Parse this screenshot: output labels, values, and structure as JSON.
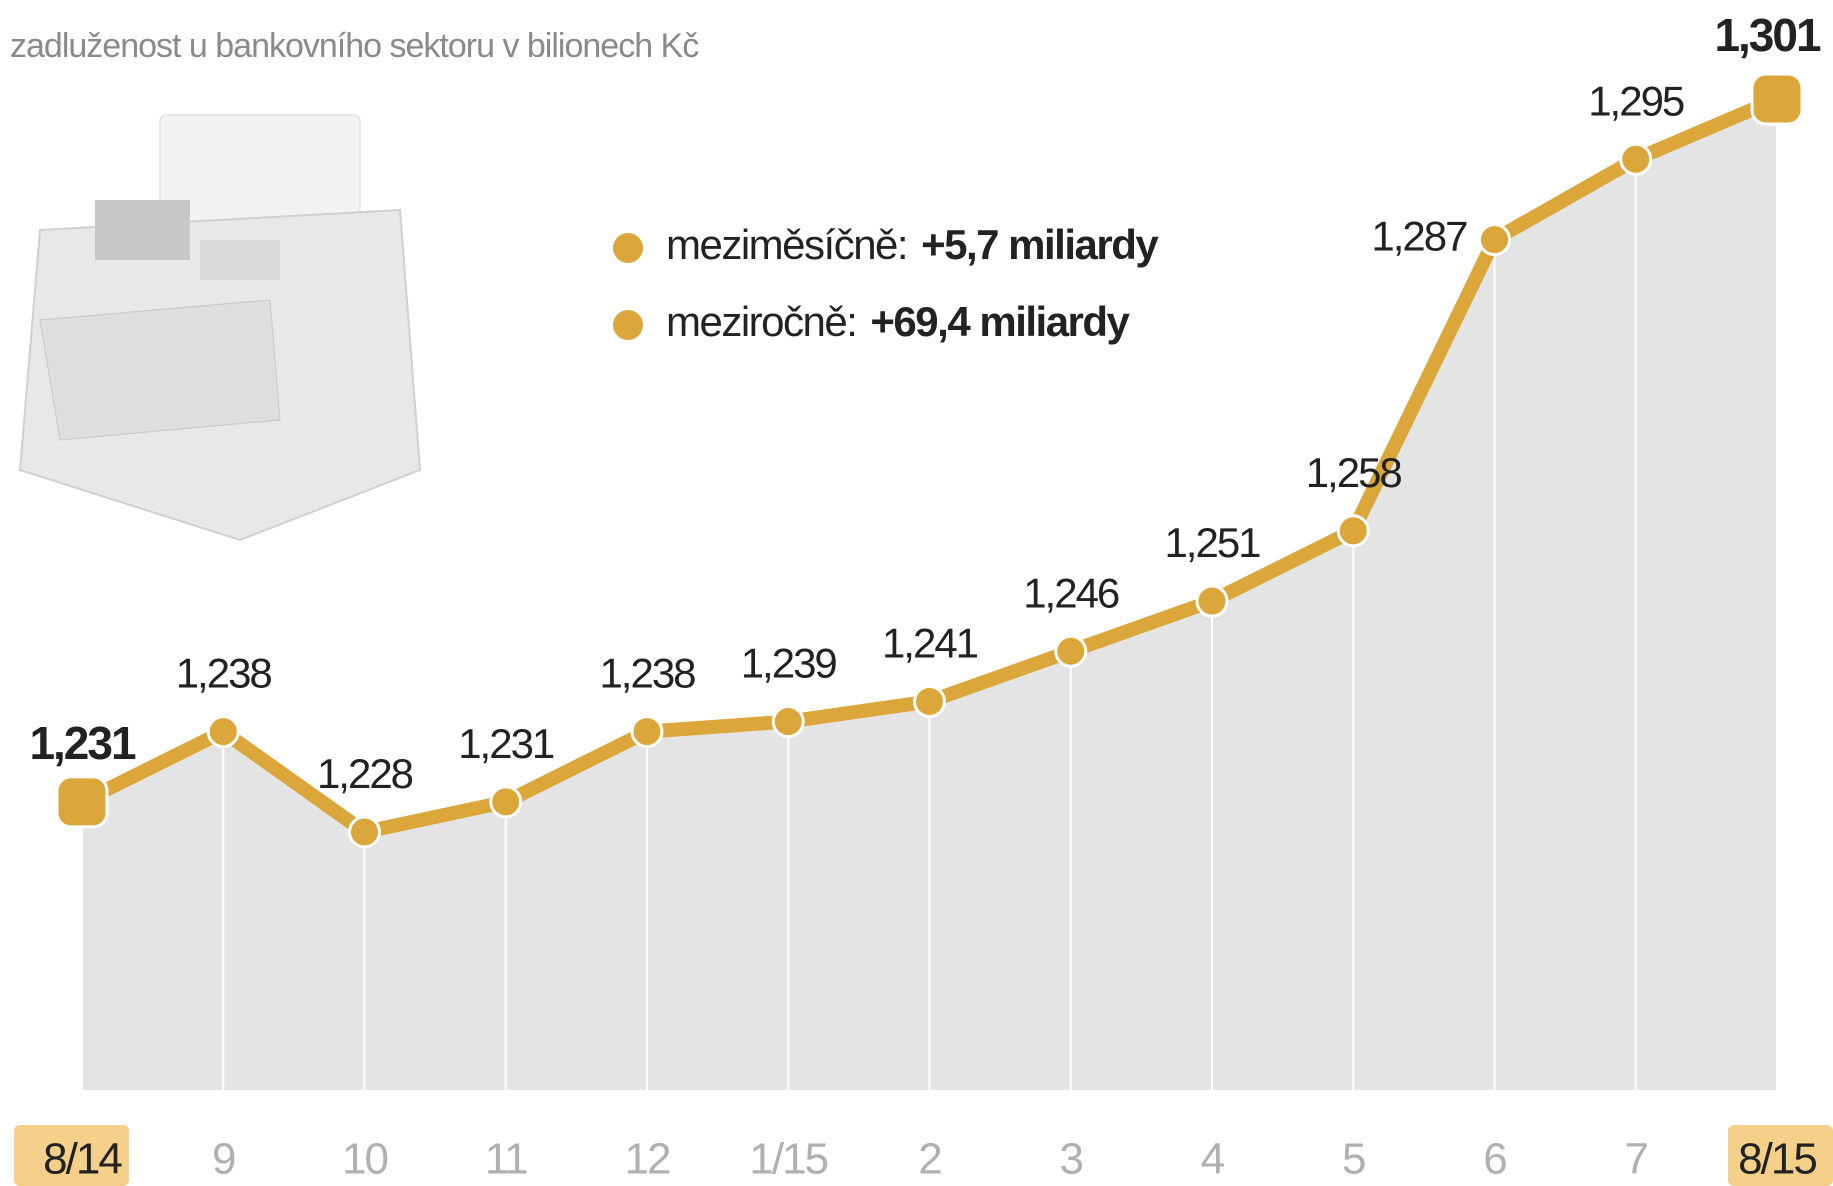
{
  "chart_data": {
    "type": "line",
    "subtitle": "zadluženost u bankovního sektoru v bilionech Kč",
    "categories": [
      "8/14",
      "9",
      "10",
      "11",
      "12",
      "1/15",
      "2",
      "3",
      "4",
      "5",
      "6",
      "7",
      "8/15"
    ],
    "values": [
      1.231,
      1.238,
      1.228,
      1.231,
      1.238,
      1.239,
      1.241,
      1.246,
      1.251,
      1.258,
      1.287,
      1.295,
      1.301
    ],
    "value_labels": [
      "1,231",
      "1,238",
      "1,228",
      "1,231",
      "1,238",
      "1,239",
      "1,241",
      "1,246",
      "1,251",
      "1,258",
      "1,287",
      "1,295",
      "1,301"
    ],
    "color": "#dba73a",
    "area_color": "#e4e4e4",
    "legend": [
      {
        "label": "meziměsíčně:",
        "value": "+5,7 miliardy"
      },
      {
        "label": "meziročně:",
        "value": "+69,4 miliardy"
      }
    ]
  }
}
